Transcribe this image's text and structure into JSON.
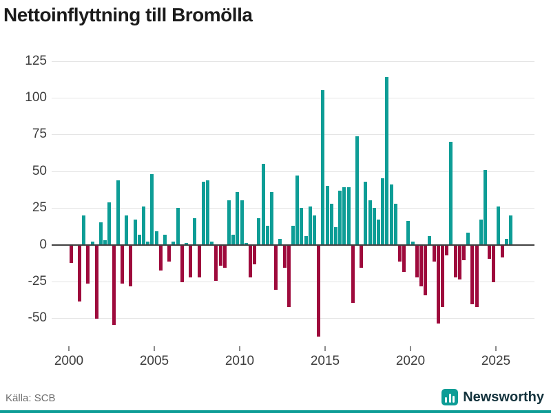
{
  "title": "Nettoinflyttning till Bromölla",
  "source_note": "Källa: SCB",
  "brand": {
    "name": "Newsworthy",
    "icon": "bar-chart-icon"
  },
  "colors": {
    "positive": "#0d9d96",
    "negative": "#9e0a3c",
    "zero_line": "#3f3f3f",
    "gridline": "#e4e4e4",
    "brand_text": "#14333d",
    "bottom_strip": "#0d9d96"
  },
  "axis": {
    "y_ticks": [
      125,
      100,
      75,
      50,
      25,
      0,
      -25,
      -50
    ],
    "x_ticks": [
      2000,
      2005,
      2010,
      2015,
      2020,
      2025
    ],
    "grid": "horizontal-only"
  },
  "chart_data": {
    "type": "bar",
    "title": "Nettoinflyttning till Bromölla",
    "xlabel": "",
    "ylabel": "",
    "ylim": [
      -65,
      125
    ],
    "period": "quarterly",
    "start_year": 2000,
    "legend": "none",
    "series_note": "positive values teal, negative values dark red",
    "values": [
      -12,
      0,
      -38,
      20,
      -26,
      2,
      -50,
      15,
      3,
      29,
      -54,
      44,
      -26,
      20,
      -28,
      17,
      7,
      26,
      2,
      48,
      9,
      -17,
      7,
      -11,
      2,
      25,
      -25,
      1,
      -22,
      18,
      -22,
      43,
      44,
      2,
      -24,
      -14,
      -15,
      30,
      7,
      36,
      30,
      1,
      -22,
      -13,
      18,
      55,
      13,
      36,
      -30,
      4,
      -15,
      -42,
      13,
      47,
      25,
      6,
      26,
      20,
      -62,
      105,
      40,
      28,
      12,
      37,
      39,
      39,
      -39,
      74,
      -15,
      43,
      30,
      25,
      17,
      45,
      114,
      41,
      28,
      -11,
      -18,
      16,
      2,
      -22,
      -28,
      -34,
      6,
      -11,
      -53,
      -42,
      -7,
      70,
      -22,
      -23,
      -10,
      8,
      -40,
      -42,
      17,
      51,
      -9,
      -25,
      26,
      -8,
      4,
      20
    ]
  }
}
